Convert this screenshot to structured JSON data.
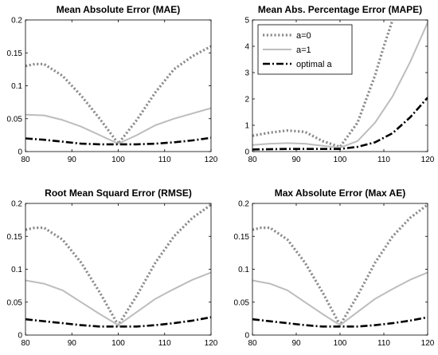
{
  "chart_data": [
    {
      "type": "line",
      "title": "Mean Absolute Error (MAE)",
      "xlabel": "",
      "ylabel": "",
      "xlim": [
        80,
        120
      ],
      "ylim": [
        0,
        0.2
      ],
      "x_ticks": [
        "80",
        "90",
        "100",
        "110",
        "120"
      ],
      "y_ticks": [
        "0",
        "0.05",
        "0.1",
        "0.15",
        "0.2"
      ],
      "grid": false,
      "series": [
        {
          "name": "a=0",
          "color": "#8c8c8c",
          "style": "dotted",
          "x": [
            80,
            82,
            84,
            88,
            92,
            96,
            100,
            104,
            108,
            112,
            116,
            120
          ],
          "y": [
            0.13,
            0.133,
            0.133,
            0.115,
            0.085,
            0.05,
            0.012,
            0.048,
            0.09,
            0.125,
            0.145,
            0.16
          ]
        },
        {
          "name": "a=1",
          "color": "#bdbdbd",
          "style": "solid",
          "x": [
            80,
            84,
            88,
            92,
            96,
            100,
            104,
            108,
            112,
            116,
            120
          ],
          "y": [
            0.056,
            0.055,
            0.048,
            0.038,
            0.025,
            0.012,
            0.025,
            0.04,
            0.05,
            0.058,
            0.066
          ]
        },
        {
          "name": "optimal a",
          "color": "#000000",
          "style": "dashdot",
          "x": [
            80,
            84,
            88,
            92,
            96,
            100,
            104,
            108,
            112,
            116,
            120
          ],
          "y": [
            0.02,
            0.018,
            0.015,
            0.012,
            0.011,
            0.011,
            0.011,
            0.012,
            0.014,
            0.017,
            0.021
          ]
        }
      ]
    },
    {
      "type": "line",
      "title": "Mean Abs. Percentage Error (MAPE)",
      "xlabel": "",
      "ylabel": "",
      "xlim": [
        80,
        120
      ],
      "ylim": [
        0,
        5
      ],
      "x_ticks": [
        "80",
        "90",
        "100",
        "110",
        "120"
      ],
      "y_ticks": [
        "0",
        "1",
        "2",
        "3",
        "4",
        "5"
      ],
      "grid": false,
      "legend": {
        "position": "top-left",
        "entries": [
          "a=0",
          "a=1",
          "optimal a"
        ]
      },
      "series": [
        {
          "name": "a=0",
          "color": "#8c8c8c",
          "style": "dotted",
          "x": [
            80,
            84,
            88,
            92,
            96,
            100,
            104,
            108,
            110,
            112
          ],
          "y": [
            0.6,
            0.72,
            0.8,
            0.75,
            0.4,
            0.18,
            1.1,
            2.9,
            4.0,
            5.0
          ]
        },
        {
          "name": "a=1",
          "color": "#bdbdbd",
          "style": "solid",
          "x": [
            80,
            84,
            88,
            92,
            96,
            100,
            104,
            108,
            112,
            116,
            120
          ],
          "y": [
            0.25,
            0.3,
            0.32,
            0.3,
            0.22,
            0.15,
            0.4,
            1.1,
            2.1,
            3.4,
            4.9
          ]
        },
        {
          "name": "optimal a",
          "color": "#000000",
          "style": "dashdot",
          "x": [
            80,
            84,
            88,
            92,
            96,
            100,
            104,
            108,
            112,
            116,
            120
          ],
          "y": [
            0.08,
            0.09,
            0.1,
            0.1,
            0.1,
            0.1,
            0.18,
            0.35,
            0.7,
            1.3,
            2.05
          ]
        }
      ]
    },
    {
      "type": "line",
      "title": "Root Mean Squard Error (RMSE)",
      "xlabel": "",
      "ylabel": "",
      "xlim": [
        80,
        120
      ],
      "ylim": [
        0,
        0.2
      ],
      "x_ticks": [
        "80",
        "90",
        "100",
        "110",
        "120"
      ],
      "y_ticks": [
        "0",
        "0.05",
        "0.1",
        "0.15",
        "0.2"
      ],
      "grid": false,
      "series": [
        {
          "name": "a=0",
          "color": "#8c8c8c",
          "style": "dotted",
          "x": [
            80,
            82,
            84,
            88,
            92,
            96,
            100,
            104,
            108,
            112,
            116,
            120
          ],
          "y": [
            0.16,
            0.163,
            0.163,
            0.145,
            0.11,
            0.065,
            0.015,
            0.06,
            0.11,
            0.15,
            0.178,
            0.198
          ]
        },
        {
          "name": "a=1",
          "color": "#bdbdbd",
          "style": "solid",
          "x": [
            80,
            84,
            88,
            92,
            96,
            100,
            104,
            108,
            112,
            116,
            120
          ],
          "y": [
            0.083,
            0.078,
            0.068,
            0.05,
            0.032,
            0.015,
            0.035,
            0.055,
            0.07,
            0.084,
            0.095
          ]
        },
        {
          "name": "optimal a",
          "color": "#000000",
          "style": "dashdot",
          "x": [
            80,
            84,
            88,
            92,
            96,
            100,
            104,
            108,
            112,
            116,
            120
          ],
          "y": [
            0.024,
            0.021,
            0.018,
            0.015,
            0.013,
            0.013,
            0.013,
            0.015,
            0.018,
            0.022,
            0.027
          ]
        }
      ]
    },
    {
      "type": "line",
      "title": "Max Absolute Error (Max AE)",
      "xlabel": "",
      "ylabel": "",
      "xlim": [
        80,
        120
      ],
      "ylim": [
        0,
        0.2
      ],
      "x_ticks": [
        "80",
        "90",
        "100",
        "110",
        "120"
      ],
      "y_ticks": [
        "0",
        "0.05",
        "0.1",
        "0.15",
        "0.2"
      ],
      "grid": false,
      "series": [
        {
          "name": "a=0",
          "color": "#8c8c8c",
          "style": "dotted",
          "x": [
            80,
            82,
            84,
            88,
            92,
            96,
            100,
            104,
            108,
            112,
            116,
            120
          ],
          "y": [
            0.16,
            0.163,
            0.163,
            0.145,
            0.11,
            0.065,
            0.015,
            0.06,
            0.11,
            0.15,
            0.178,
            0.198
          ]
        },
        {
          "name": "a=1",
          "color": "#bdbdbd",
          "style": "solid",
          "x": [
            80,
            84,
            88,
            92,
            96,
            100,
            104,
            108,
            112,
            116,
            120
          ],
          "y": [
            0.083,
            0.078,
            0.068,
            0.05,
            0.032,
            0.015,
            0.035,
            0.055,
            0.07,
            0.084,
            0.095
          ]
        },
        {
          "name": "optimal a",
          "color": "#000000",
          "style": "dashdot",
          "x": [
            80,
            84,
            88,
            92,
            96,
            100,
            104,
            108,
            112,
            116,
            120
          ],
          "y": [
            0.024,
            0.021,
            0.018,
            0.015,
            0.013,
            0.013,
            0.013,
            0.015,
            0.018,
            0.022,
            0.027
          ]
        }
      ]
    }
  ]
}
